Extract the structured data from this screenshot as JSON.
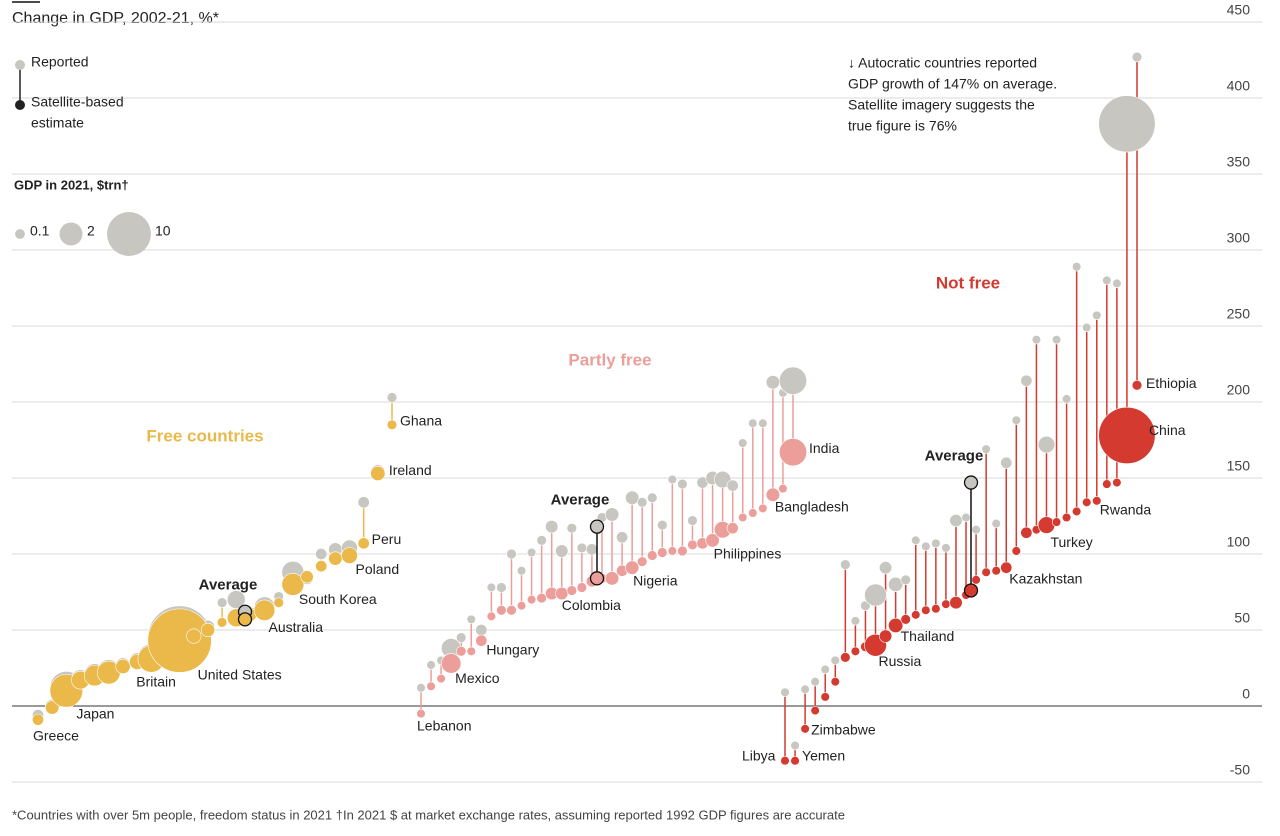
{
  "chart_data": {
    "type": "dumbbell",
    "title": "Change in GDP, 2002-21, %*",
    "legend": {
      "reported": "Reported",
      "satellite": [
        "Satellite-based",
        "estimate"
      ]
    },
    "size_legend": {
      "title": "GDP in 2021, $trn†",
      "values": [
        0.1,
        2,
        10
      ]
    },
    "reported_color": "#c8c6c0",
    "ylim": [
      -50,
      450
    ],
    "yticks": [
      -50,
      0,
      50,
      100,
      150,
      200,
      250,
      300,
      350,
      400,
      450
    ],
    "grid": true,
    "groups": [
      {
        "name": "Free countries",
        "color": "#eab94a",
        "categories": [
          "Greece",
          null,
          "Japan",
          null,
          null,
          null,
          null,
          null,
          "Britain",
          null,
          "United States",
          null,
          null,
          null,
          null,
          null,
          "Australia",
          null,
          "South Korea",
          null,
          null,
          null,
          "Poland",
          "Peru",
          "Ireland",
          "Ghana"
        ],
        "reported": [
          -6,
          0,
          12,
          18,
          21,
          23,
          27,
          30,
          32,
          35,
          45,
          48,
          52,
          68,
          70,
          61,
          65,
          72,
          88,
          84,
          100,
          103,
          104,
          134,
          154,
          203
        ],
        "satellite": [
          -9,
          -1,
          10,
          17,
          20,
          22,
          26,
          29,
          31,
          34,
          43,
          46,
          50,
          55,
          58,
          60,
          63,
          68,
          80,
          85,
          92,
          97,
          99,
          107,
          153,
          185
        ],
        "gdp": [
          0.2,
          0.4,
          5,
          1,
          1.5,
          2,
          0.5,
          0.6,
          3,
          0.3,
          23,
          0.5,
          0.4,
          0.1,
          1,
          0.3,
          1.5,
          0.1,
          1.8,
          0.3,
          0.2,
          0.4,
          0.7,
          0.2,
          0.5,
          0.1
        ],
        "average": {
          "label": "Average",
          "reported": 62,
          "satellite": 57
        }
      },
      {
        "name": "Partly free",
        "color": "#ec9e9b",
        "categories": [
          "Lebanon",
          null,
          null,
          "Mexico",
          null,
          null,
          "Hungary",
          null,
          null,
          null,
          null,
          null,
          null,
          null,
          "Colombia",
          null,
          null,
          null,
          null,
          null,
          null,
          "Nigeria",
          null,
          null,
          null,
          null,
          null,
          null,
          null,
          null,
          "Philippines",
          null,
          null,
          null,
          null,
          "Bangladesh",
          null,
          "India"
        ],
        "reported": [
          12,
          27,
          30,
          38,
          45,
          57,
          50,
          78,
          78,
          100,
          89,
          101,
          109,
          118,
          102,
          117,
          104,
          103,
          124,
          126,
          111,
          137,
          134,
          137,
          119,
          149,
          146,
          122,
          147,
          150,
          149,
          145,
          173,
          186,
          186,
          213,
          206,
          214
        ],
        "satellite": [
          -5,
          13,
          18,
          28,
          36,
          36,
          43,
          59,
          63,
          63,
          66,
          70,
          71,
          74,
          74,
          76,
          78,
          82,
          84,
          84,
          89,
          91,
          95,
          99,
          101,
          102,
          102,
          106,
          107,
          109,
          116,
          117,
          124,
          127,
          130,
          139,
          143,
          167
        ],
        "gdp": [
          0.05,
          0.05,
          0.05,
          1.3,
          0.1,
          0.05,
          0.2,
          0.05,
          0.1,
          0.1,
          0.05,
          0.05,
          0.1,
          0.3,
          0.3,
          0.1,
          0.1,
          0.2,
          0.1,
          0.4,
          0.2,
          0.4,
          0.1,
          0.1,
          0.1,
          0.05,
          0.1,
          0.1,
          0.2,
          0.4,
          0.8,
          0.2,
          0.05,
          0.05,
          0.05,
          0.4,
          0.05,
          3.2
        ],
        "average": {
          "label": "Average",
          "reported": 118,
          "satellite": 84
        }
      },
      {
        "name": "Not free",
        "color": "#d43a2f",
        "categories": [
          "Libya",
          "Yemen",
          "Zimbabwe",
          null,
          null,
          null,
          null,
          null,
          null,
          "Russia",
          null,
          "Thailand",
          null,
          null,
          null,
          null,
          null,
          null,
          null,
          null,
          null,
          null,
          "Kazakhstan",
          null,
          null,
          null,
          "Turkey",
          null,
          null,
          null,
          null,
          "Rwanda",
          null,
          null,
          "China",
          "Ethiopia"
        ],
        "reported": [
          9,
          -26,
          11,
          16,
          24,
          30,
          93,
          56,
          66,
          73,
          91,
          80,
          83,
          109,
          105,
          107,
          104,
          122,
          124,
          116,
          169,
          120,
          160,
          188,
          214,
          241,
          172,
          241,
          202,
          289,
          249,
          257,
          280,
          278,
          383,
          427
        ],
        "satellite": [
          -36,
          -36,
          -15,
          -3,
          6,
          16,
          32,
          36,
          39,
          40,
          46,
          53,
          57,
          60,
          63,
          64,
          67,
          68,
          73,
          83,
          88,
          89,
          91,
          102,
          114,
          116,
          119,
          121,
          124,
          128,
          134,
          135,
          146,
          147,
          178,
          211
        ],
        "gdp": [
          0.05,
          0.05,
          0.05,
          0.05,
          0.05,
          0.05,
          0.1,
          0.05,
          0.1,
          1.8,
          0.3,
          0.5,
          0.1,
          0.05,
          0.05,
          0.05,
          0.05,
          0.3,
          0.05,
          0.05,
          0.05,
          0.05,
          0.2,
          0.05,
          0.2,
          0.05,
          0.8,
          0.05,
          0.05,
          0.05,
          0.05,
          0.05,
          0.05,
          0.05,
          17.7,
          0.1
        ],
        "average": {
          "label": "Average",
          "reported": 147,
          "satellite": 76
        }
      }
    ],
    "annotation": [
      "↓ Autocratic countries reported",
      "GDP growth of 147% on average.",
      "Satellite imagery suggests the",
      "true figure is 76%"
    ],
    "footnote": "*Countries with over 5m people, freedom status in 2021 †In 2021 $ at market exchange rates, assuming reported 1992 GDP figures are accurate"
  }
}
